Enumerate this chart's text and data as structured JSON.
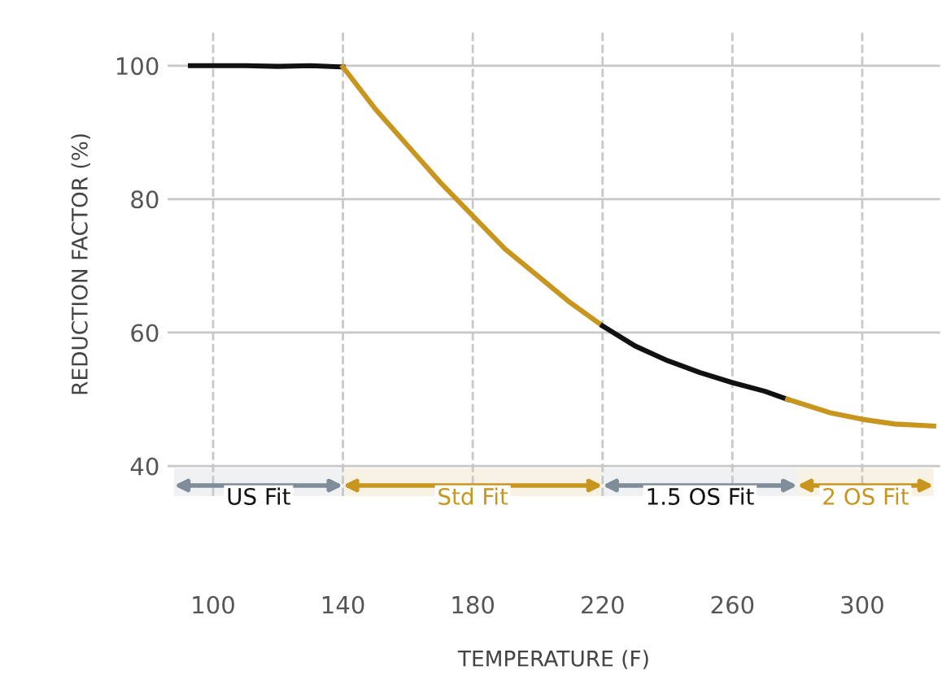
{
  "chart_data": {
    "type": "line",
    "xlabel": "TEMPERATURE (F)",
    "ylabel": "REDUCTION FACTOR (%)",
    "xlim": [
      86,
      324
    ],
    "ylim": [
      35.5,
      105
    ],
    "xticks": [
      100,
      140,
      180,
      220,
      260,
      300
    ],
    "yticks": [
      40,
      60,
      80,
      100
    ],
    "grid": true,
    "marker": "none",
    "line_style": "solid",
    "series": [
      {
        "color": "#111111",
        "x": [
          93,
          100,
          110,
          120,
          130,
          140
        ],
        "values": [
          100,
          100,
          100,
          99.9,
          100,
          99.8
        ]
      },
      {
        "color": "#c8961e",
        "x": [
          140,
          150,
          160,
          170,
          180,
          190,
          200,
          210,
          220
        ],
        "values": [
          99.8,
          93.5,
          88,
          82.5,
          77.5,
          72.5,
          68.5,
          64.5,
          61
        ]
      },
      {
        "color": "#111111",
        "x": [
          220,
          230,
          240,
          250,
          260,
          270,
          277
        ],
        "values": [
          61,
          58,
          55.8,
          54,
          52.5,
          51.2,
          50
        ]
      },
      {
        "color": "#c8961e",
        "x": [
          277,
          290,
          300,
          310,
          322
        ],
        "values": [
          50,
          48,
          47,
          46.3,
          46
        ]
      }
    ],
    "bands": [
      {
        "axis": "x",
        "from": 88,
        "to": 140,
        "label": "US Fit",
        "color": "#7f8c99"
      },
      {
        "axis": "x",
        "from": 140,
        "to": 220,
        "label": "Std Fit",
        "color": "#c8961e"
      },
      {
        "axis": "x",
        "from": 220,
        "to": 280,
        "label": "1.5 OS Fit",
        "color": "#7f8c99"
      },
      {
        "axis": "x",
        "from": 280,
        "to": 322,
        "label": "2 OS Fit",
        "color": "#c8961e"
      }
    ]
  }
}
